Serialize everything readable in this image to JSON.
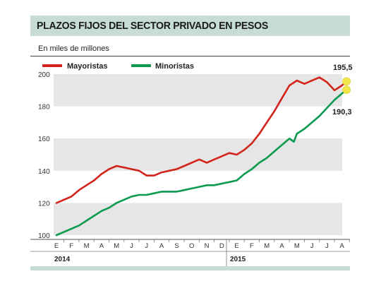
{
  "title": "PLAZOS FIJOS DEL SECTOR PRIVADO EN PESOS",
  "unit_label": "En miles de millones",
  "chart_data": {
    "type": "line",
    "ylim": [
      100,
      200
    ],
    "yticks": [
      100,
      120,
      140,
      160,
      180,
      200
    ],
    "months": [
      "E",
      "F",
      "M",
      "A",
      "M",
      "J",
      "J",
      "A",
      "S",
      "O",
      "N",
      "D",
      "E",
      "F",
      "M",
      "A",
      "M",
      "J",
      "J",
      "A"
    ],
    "years": [
      "2014",
      "2015"
    ],
    "colors": {
      "mayoristas": "#d3241c",
      "minoristas": "#0b9a4e",
      "marker": "#f1e64a",
      "band": "#e6e6e6"
    },
    "series": [
      {
        "name": "Mayoristas",
        "end_label": "195,5",
        "x": [
          0,
          0.5,
          1,
          1.5,
          2,
          2.5,
          3,
          3.5,
          4,
          4.5,
          5,
          5.5,
          6,
          6.5,
          7,
          7.5,
          8,
          8.5,
          9,
          9.5,
          10,
          10.5,
          11,
          11.5,
          12,
          12.5,
          13,
          13.5,
          14,
          14.5,
          15,
          15.5,
          16,
          16.5,
          17,
          17.5,
          18,
          18.5,
          19,
          19.3
        ],
        "values": [
          120,
          122,
          124,
          128,
          131,
          134,
          138,
          141,
          143,
          142,
          141,
          140,
          137,
          137,
          139,
          140,
          141,
          143,
          145,
          147,
          145,
          147,
          149,
          151,
          150,
          153,
          157,
          163,
          170,
          177,
          185,
          193,
          196,
          194,
          196,
          198,
          195,
          190,
          193,
          195.5
        ]
      },
      {
        "name": "Minoristas",
        "end_label": "190,3",
        "x": [
          0,
          0.5,
          1,
          1.5,
          2,
          2.5,
          3,
          3.5,
          4,
          4.5,
          5,
          5.5,
          6,
          6.5,
          7,
          7.5,
          8,
          8.5,
          9,
          9.5,
          10,
          10.5,
          11,
          11.5,
          12,
          12.5,
          13,
          13.5,
          14,
          14.5,
          15,
          15.5,
          15.8,
          16,
          16.5,
          17,
          17.5,
          18,
          18.5,
          19,
          19.3
        ],
        "values": [
          100,
          102,
          104,
          106,
          109,
          112,
          115,
          117,
          120,
          122,
          124,
          125,
          125,
          126,
          127,
          127,
          127,
          128,
          129,
          130,
          131,
          131,
          132,
          133,
          134,
          138,
          141,
          145,
          148,
          152,
          156,
          160,
          158,
          163,
          166,
          170,
          174,
          179,
          184,
          188,
          190.3
        ]
      }
    ]
  }
}
